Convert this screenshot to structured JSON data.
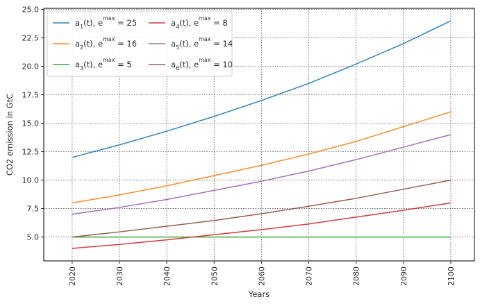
{
  "chart_data": {
    "type": "line",
    "xlabel": "Years",
    "ylabel": "CO2 emission in GtC",
    "xlim": [
      2014,
      2105
    ],
    "ylim": [
      2.9,
      25.1
    ],
    "x_ticks": [
      2020,
      2030,
      2040,
      2050,
      2060,
      2070,
      2080,
      2090,
      2100
    ],
    "y_ticks": [
      5.0,
      7.5,
      10.0,
      12.5,
      15.0,
      17.5,
      20.0,
      22.5,
      25.0
    ],
    "y_tick_labels": [
      "5.0",
      "7.5",
      "10.0",
      "12.5",
      "15.0",
      "17.5",
      "20.0",
      "22.5",
      "25.0"
    ],
    "grid": true,
    "grid_style": "dotted",
    "legend_position": "top-left",
    "legend_columns": 2,
    "x": [
      2020,
      2030,
      2040,
      2050,
      2060,
      2070,
      2080,
      2090,
      2100
    ],
    "series": [
      {
        "name": "a1(t), e1max = 25",
        "legend": {
          "base": "a",
          "index": "1",
          "mid": "(t), e",
          "sup": "max",
          "tail": " = 25"
        },
        "color": "#3182bd",
        "values": [
          12.0,
          13.1,
          14.3,
          15.6,
          17.0,
          18.5,
          20.2,
          22.0,
          24.0
        ]
      },
      {
        "name": "a2(t), e2max = 16",
        "legend": {
          "base": "a",
          "index": "2",
          "mid": "(t), e",
          "sup": "max",
          "tail": " = 16"
        },
        "color": "#ff8c28",
        "values": [
          8.0,
          8.7,
          9.5,
          10.4,
          11.3,
          12.3,
          13.4,
          14.7,
          16.0
        ]
      },
      {
        "name": "a3(t), e3max = 5",
        "legend": {
          "base": "a",
          "index": "3",
          "mid": "(t), e",
          "sup": "max",
          "tail": " = 5"
        },
        "color": "#3aa63a",
        "values": [
          5.0,
          5.0,
          5.0,
          5.0,
          5.0,
          5.0,
          5.0,
          5.0,
          5.0
        ]
      },
      {
        "name": "a4(t), e4max = 8",
        "legend": {
          "base": "a",
          "index": "4",
          "mid": "(t), e",
          "sup": "max",
          "tail": " = 8"
        },
        "color": "#d43a3a",
        "values": [
          4.0,
          4.35,
          4.75,
          5.2,
          5.65,
          6.15,
          6.75,
          7.35,
          8.0
        ]
      },
      {
        "name": "a5(t), e5max = 14",
        "legend": {
          "base": "a",
          "index": "5",
          "mid": "(t), e",
          "sup": "max",
          "tail": " = 14"
        },
        "color": "#a070c0",
        "values": [
          7.0,
          7.6,
          8.3,
          9.1,
          9.9,
          10.8,
          11.8,
          12.9,
          14.0
        ]
      },
      {
        "name": "a6(t), e6max = 10",
        "legend": {
          "base": "a",
          "index": "6",
          "mid": "(t), e",
          "sup": "max",
          "tail": " = 10"
        },
        "color": "#9a5b50",
        "values": [
          5.0,
          5.45,
          5.95,
          6.45,
          7.05,
          7.7,
          8.4,
          9.2,
          10.0
        ]
      }
    ]
  }
}
